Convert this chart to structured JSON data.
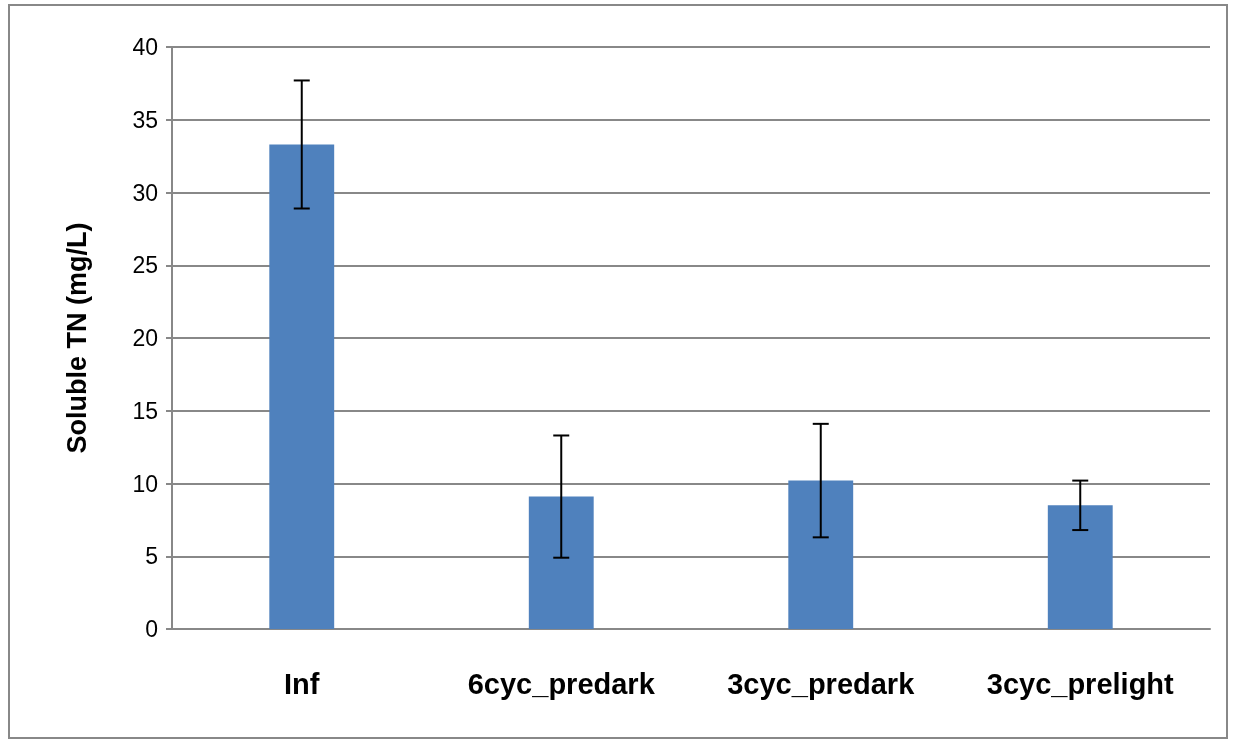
{
  "chart_data": {
    "type": "bar",
    "ylabel": "Soluble TN (mg/L)",
    "categories": [
      "Inf",
      "6cyc_predark",
      "3cyc_predark",
      "3cyc_prelight"
    ],
    "values": [
      33.3,
      9.1,
      10.2,
      8.5
    ],
    "errors": [
      4.4,
      4.2,
      3.9,
      1.7
    ],
    "color": "#4f81bd",
    "ylim": [
      0,
      40
    ],
    "yticks": [
      0,
      5,
      10,
      15,
      20,
      25,
      30,
      35,
      40
    ],
    "grid": "y"
  }
}
